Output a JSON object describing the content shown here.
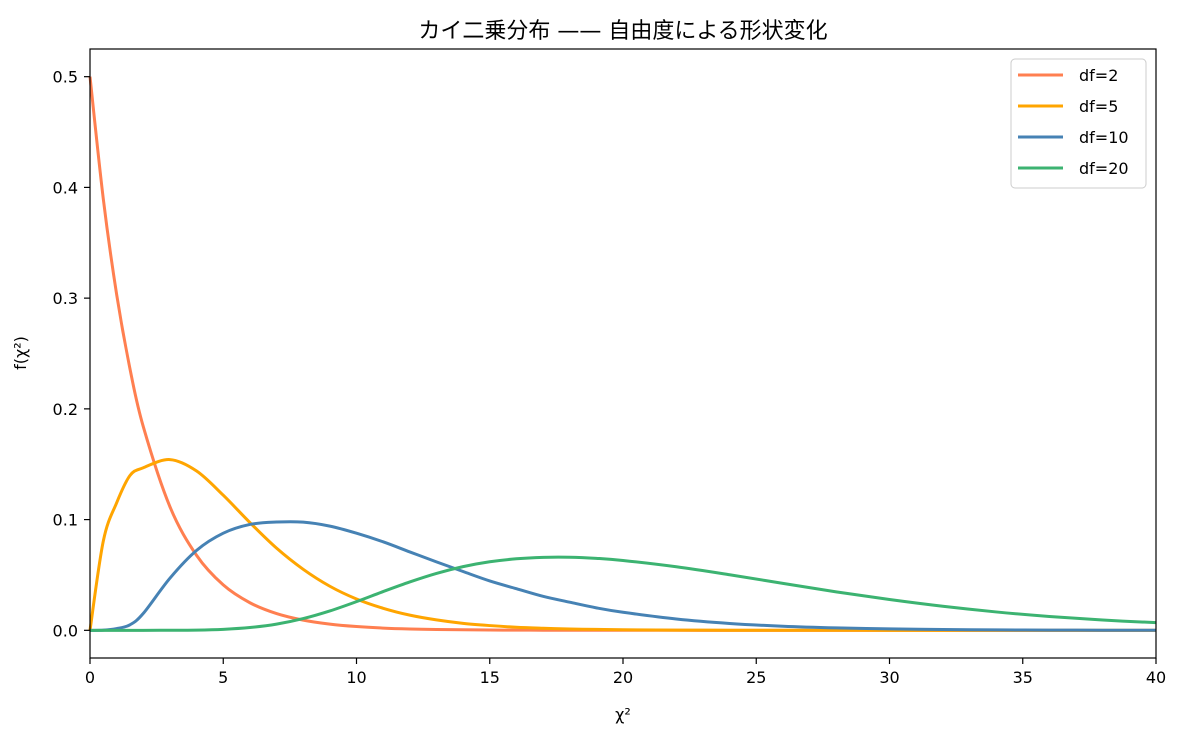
{
  "chart_data": {
    "type": "line",
    "title": "カイ二乗分布 —— 自由度による形状変化",
    "xlabel": "χ²",
    "ylabel": "f(χ²)",
    "xlim": [
      0,
      40
    ],
    "ylim": [
      -0.025,
      0.525
    ],
    "x_ticks": [
      0,
      5,
      10,
      15,
      20,
      25,
      30,
      35,
      40
    ],
    "y_ticks": [
      0.0,
      0.1,
      0.2,
      0.3,
      0.4,
      0.5
    ],
    "x_tick_labels": [
      "0",
      "5",
      "10",
      "15",
      "20",
      "25",
      "30",
      "35",
      "40"
    ],
    "y_tick_labels": [
      "0.0",
      "0.1",
      "0.2",
      "0.3",
      "0.4",
      "0.5"
    ],
    "grid": false,
    "legend_position": "top-right",
    "x": [
      0,
      0.5,
      1,
      1.5,
      2,
      3,
      4,
      5,
      6,
      7,
      8,
      9,
      10,
      11,
      12,
      13,
      14,
      15,
      16,
      17,
      18,
      19,
      20,
      22,
      24,
      26,
      28,
      30,
      32,
      34,
      36,
      38,
      40
    ],
    "series": [
      {
        "name": "df=2",
        "color": "#ff7f50",
        "values": [
          0.5,
          0.3894,
          0.3033,
          0.2362,
          0.1839,
          0.1116,
          0.0677,
          0.041,
          0.0249,
          0.0151,
          0.0092,
          0.0056,
          0.0034,
          0.002,
          0.0012,
          0.00075,
          0.00046,
          0.00028,
          0.00017,
          0.0001,
          6e-05,
          4e-05,
          2e-05,
          1e-05,
          0,
          0,
          0,
          0,
          0,
          0,
          0,
          0,
          0
        ]
      },
      {
        "name": "df=5",
        "color": "#ffa500",
        "values": [
          0,
          0.0807,
          0.1152,
          0.1398,
          0.1468,
          0.1542,
          0.1439,
          0.122,
          0.0973,
          0.0742,
          0.0551,
          0.0398,
          0.0283,
          0.0199,
          0.0137,
          0.0094,
          0.0063,
          0.0043,
          0.0028,
          0.0019,
          0.0012,
          0.0008,
          0.0005,
          0.0002,
          0.0001,
          4e-05,
          2e-05,
          0,
          0,
          0,
          0,
          0,
          0
        ]
      },
      {
        "name": "df=10",
        "color": "#4682b4",
        "values": [
          0,
          0.00016,
          0.0016,
          0.005,
          0.0153,
          0.0471,
          0.0722,
          0.0877,
          0.0956,
          0.0978,
          0.0977,
          0.0941,
          0.0877,
          0.0799,
          0.0708,
          0.0618,
          0.0531,
          0.0446,
          0.0376,
          0.0307,
          0.0254,
          0.0203,
          0.0163,
          0.0102,
          0.0062,
          0.0037,
          0.0022,
          0.0013,
          0.0007,
          0.0004,
          0.0002,
          0.0001,
          0.0001
        ]
      },
      {
        "name": "df=20",
        "color": "#3cb371",
        "values": [
          0,
          0,
          0,
          0,
          0,
          3e-05,
          0.0002,
          0.0009,
          0.0025,
          0.0056,
          0.0106,
          0.0175,
          0.0259,
          0.035,
          0.0437,
          0.0514,
          0.0575,
          0.0619,
          0.0646,
          0.0659,
          0.066,
          0.065,
          0.0631,
          0.0574,
          0.0502,
          0.0424,
          0.0347,
          0.0278,
          0.0217,
          0.0166,
          0.0125,
          0.0093,
          0.0069
        ]
      }
    ]
  }
}
